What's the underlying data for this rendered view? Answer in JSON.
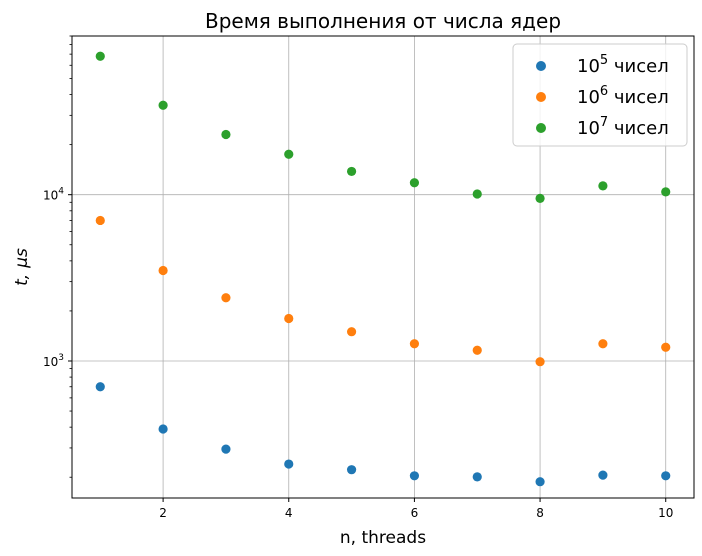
{
  "chart_data": {
    "type": "scatter",
    "title": "Время выполнения от числа ядер",
    "xlabel": "n, threads",
    "ylabel_italic": "t,",
    "ylabel_unit": "μs",
    "x": [
      1,
      2,
      3,
      4,
      5,
      6,
      7,
      8,
      9,
      10
    ],
    "xticks": [
      2,
      4,
      6,
      8,
      10
    ],
    "yscale": "log",
    "ylim": [
      150,
      90000
    ],
    "xlim": [
      0.55,
      10.45
    ],
    "yticks": [
      {
        "value": 1000,
        "base": "10",
        "exp": "3"
      },
      {
        "value": 10000,
        "base": "10",
        "exp": "4"
      }
    ],
    "grid": true,
    "legend_position": "top-right",
    "series": [
      {
        "name_base": "10",
        "name_exp": "5",
        "name_suffix": " чисел",
        "color": "#1f77b4",
        "values": [
          700,
          390,
          295,
          240,
          222,
          204,
          201,
          188,
          206,
          204
        ]
      },
      {
        "name_base": "10",
        "name_exp": "6",
        "name_suffix": " чисел",
        "color": "#ff7f0e",
        "values": [
          7000,
          3500,
          2400,
          1800,
          1500,
          1270,
          1160,
          990,
          1270,
          1210
        ]
      },
      {
        "name_base": "10",
        "name_exp": "7",
        "name_suffix": " чисел",
        "color": "#2ca02c",
        "values": [
          68000,
          34500,
          23000,
          17500,
          13800,
          11800,
          10100,
          9500,
          11300,
          10400
        ]
      }
    ]
  }
}
